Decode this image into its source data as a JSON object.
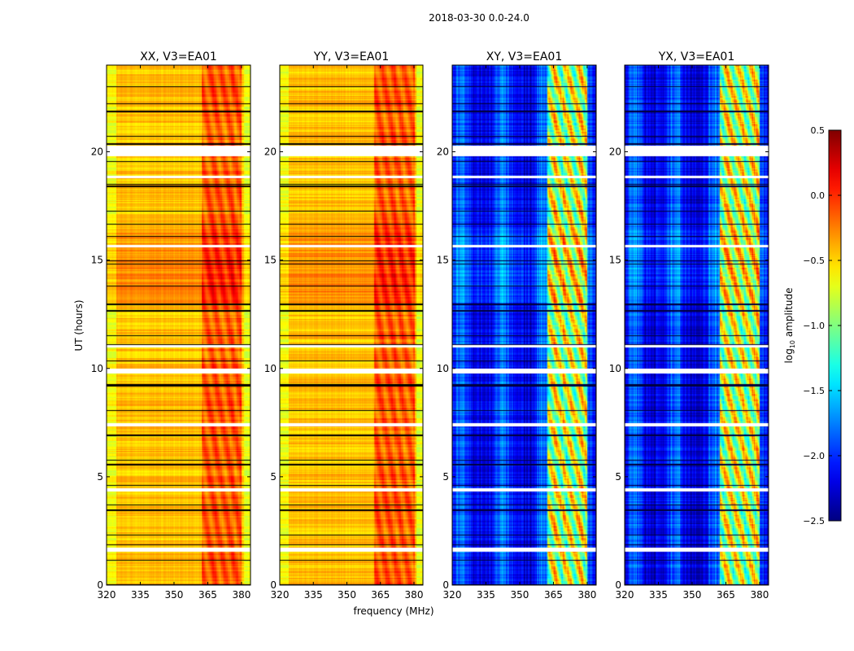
{
  "chart_data": {
    "type": "heatmap",
    "suptitle": "2018-03-30 0.0-24.0",
    "xlabel": "frequency (MHz)",
    "ylabel": "UT (hours)",
    "xlim": [
      320,
      384
    ],
    "ylim": [
      0,
      24
    ],
    "xticks": [
      "320",
      "335",
      "350",
      "365",
      "380"
    ],
    "yticks": [
      "0",
      "5",
      "10",
      "15",
      "20"
    ],
    "panels": [
      {
        "title": "XX, V3=EA01",
        "kind": "auto"
      },
      {
        "title": "YY, V3=EA01",
        "kind": "auto"
      },
      {
        "title": "XY, V3=EA01",
        "kind": "cross"
      },
      {
        "title": "YX, V3=EA01",
        "kind": "cross"
      }
    ],
    "colorbar": {
      "label": "log10 amplitude",
      "label_main": "log",
      "label_sub": "10",
      "label_rest": " amplitude",
      "range": [
        -2.5,
        0.5
      ],
      "ticks": [
        "0.5",
        "0.0",
        "−0.5",
        "−1.0",
        "−1.5",
        "−2.0",
        "−2.5"
      ],
      "colormap": "jet"
    },
    "flagged_hours": [
      [
        19.8,
        20.3
      ],
      [
        9.8,
        10.0
      ],
      [
        4.35,
        4.5
      ],
      [
        1.55,
        1.75
      ],
      [
        18.8,
        18.9
      ],
      [
        15.6,
        15.7
      ],
      [
        11.0,
        11.1
      ],
      [
        7.35,
        7.5
      ]
    ],
    "bright_band_mhz": [
      362,
      380
    ]
  }
}
